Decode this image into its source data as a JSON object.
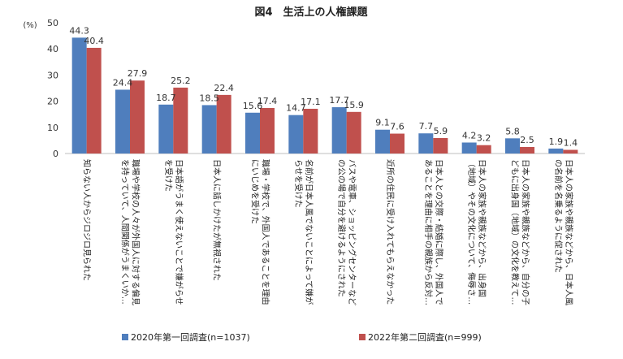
{
  "chart_data": {
    "type": "bar",
    "title": "図4　生活上の人権課題",
    "unit_label": "(%)",
    "ylim": [
      0,
      50
    ],
    "yticks": [
      0,
      10,
      20,
      30,
      40,
      50
    ],
    "grid": false,
    "legend_position": "bottom",
    "categories": [
      [
        "知らない人からジロジロ見られた"
      ],
      [
        "職場や学校の人々が外国人に対する偏見",
        "を持っていて、人間関係がうまくいか…"
      ],
      [
        "日本語がうまく使えないことで嫌がらせ",
        "を受けた"
      ],
      [
        "日本人に話しかけたが無視された"
      ],
      [
        "職場・学校で、外国人であることを理由",
        "にいじめを受けた"
      ],
      [
        "名前が日本人風でないことによって嫌が",
        "らせを受けた"
      ],
      [
        "バスや電車、ショッピングセンターなど",
        "の公の場で自分を避けるようにされた"
      ],
      [
        "近所の住民に受け入れてもらえなかった"
      ],
      [
        "日本人との交際・結婚に際し、外国人で",
        "あることを理由に相手の親族から反対…"
      ],
      [
        "日本人の家族や親族などから、出身国",
        "（地域）やその文化について、侮辱さ…"
      ],
      [
        "日本人の家族や親族などから、自分の子",
        "どもに出身国（地域）の文化を教えて…"
      ],
      [
        "日本人の家族や親族などから、日本人風",
        "の名前を名乗るように促された"
      ]
    ],
    "series": [
      {
        "name": "2020年第一回調査(n=1037)",
        "color": "#4f7ebd",
        "values": [
          44.3,
          24.4,
          18.7,
          18.5,
          15.6,
          14.7,
          17.7,
          9.1,
          7.7,
          4.2,
          5.8,
          1.9
        ]
      },
      {
        "name": "2022年第二回調査(n=999)",
        "color": "#c0504d",
        "values": [
          40.4,
          27.9,
          25.2,
          22.4,
          17.4,
          17.1,
          15.9,
          7.6,
          5.9,
          3.2,
          2.5,
          1.4
        ]
      }
    ]
  }
}
